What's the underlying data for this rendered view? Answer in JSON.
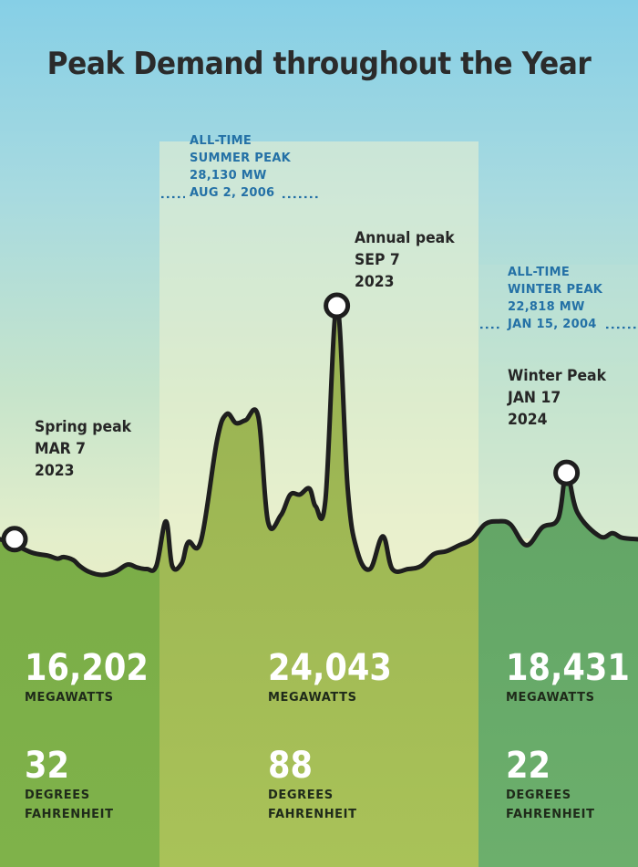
{
  "title": "Peak Demand throughout the Year",
  "colors": {
    "spring": "#7aaa4a",
    "summer": "#9fb655",
    "winter": "#5f9f62",
    "summer_band": "#ecf0cd",
    "winter_band": "#c4e3d4",
    "line": "#1e1e1e",
    "record_text": "#2471a6",
    "stat_text": "#ffffff"
  },
  "annotations": {
    "spring": {
      "label": "Spring peak",
      "date": "MAR 7",
      "year": "2023"
    },
    "annual": {
      "label": "Annual peak",
      "date": "SEP 7",
      "year": "2023"
    },
    "winter": {
      "label": "Winter Peak",
      "date": "JAN 17",
      "year": "2024"
    }
  },
  "records": {
    "summer": {
      "line1": "ALL-TIME",
      "line2": "SUMMER PEAK",
      "value": "28,130 MW",
      "date": "AUG 2, 2006"
    },
    "winter": {
      "line1": "ALL-TIME",
      "line2": "WINTER PEAK",
      "value": "22,818 MW",
      "date": "JAN 15, 2004"
    }
  },
  "stats": {
    "spring": {
      "megawatts": "16,202",
      "mw_label": "MEGAWATTS",
      "temp": "32",
      "temp_line1": "DEGREES",
      "temp_line2": "FAHRENHEIT"
    },
    "summer": {
      "megawatts": "24,043",
      "mw_label": "MEGAWATTS",
      "temp": "88",
      "temp_line1": "DEGREES",
      "temp_line2": "FAHRENHEIT"
    },
    "winter": {
      "megawatts": "18,431",
      "mw_label": "MEGAWATTS",
      "temp": "22",
      "temp_line1": "DEGREES",
      "temp_line2": "FAHRENHEIT"
    }
  },
  "chart_data": {
    "type": "area",
    "title": "Peak Demand throughout the Year",
    "x_range": [
      0,
      1
    ],
    "y_range": [
      14500,
      26500
    ],
    "season_bands": [
      {
        "name": "Spring",
        "x_start": 0,
        "x_end": 0.25
      },
      {
        "name": "Summer",
        "x_start": 0.25,
        "x_end": 0.75
      },
      {
        "name": "Winter",
        "x_start": 0.75,
        "x_end": 1.0
      }
    ],
    "series": [
      {
        "values": [
          [
            0.0,
            16202
          ],
          [
            0.02,
            16050
          ],
          [
            0.05,
            15750
          ],
          [
            0.075,
            15650
          ],
          [
            0.09,
            15550
          ],
          [
            0.1,
            15600
          ],
          [
            0.115,
            15500
          ],
          [
            0.125,
            15300
          ],
          [
            0.14,
            15100
          ],
          [
            0.16,
            15000
          ],
          [
            0.18,
            15100
          ],
          [
            0.2,
            15350
          ],
          [
            0.215,
            15250
          ],
          [
            0.23,
            15200
          ],
          [
            0.245,
            15300
          ],
          [
            0.26,
            16800
          ],
          [
            0.27,
            15300
          ],
          [
            0.285,
            15400
          ],
          [
            0.295,
            16100
          ],
          [
            0.315,
            16150
          ],
          [
            0.34,
            19500
          ],
          [
            0.355,
            20400
          ],
          [
            0.37,
            20100
          ],
          [
            0.385,
            20200
          ],
          [
            0.405,
            20300
          ],
          [
            0.42,
            16800
          ],
          [
            0.44,
            17000
          ],
          [
            0.455,
            17700
          ],
          [
            0.47,
            17700
          ],
          [
            0.485,
            17900
          ],
          [
            0.495,
            17300
          ],
          [
            0.51,
            17500
          ],
          [
            0.528,
            24043
          ],
          [
            0.545,
            17900
          ],
          [
            0.56,
            15800
          ],
          [
            0.58,
            15200
          ],
          [
            0.6,
            16300
          ],
          [
            0.615,
            15200
          ],
          [
            0.64,
            15200
          ],
          [
            0.66,
            15300
          ],
          [
            0.68,
            15700
          ],
          [
            0.7,
            15800
          ],
          [
            0.72,
            16000
          ],
          [
            0.74,
            16200
          ],
          [
            0.76,
            16700
          ],
          [
            0.78,
            16800
          ],
          [
            0.8,
            16700
          ],
          [
            0.825,
            16000
          ],
          [
            0.85,
            16600
          ],
          [
            0.875,
            16900
          ],
          [
            0.888,
            18431
          ],
          [
            0.905,
            17100
          ],
          [
            0.94,
            16300
          ],
          [
            0.96,
            16400
          ],
          [
            0.975,
            16250
          ],
          [
            1.0,
            16200
          ]
        ]
      }
    ],
    "highlighted_points": [
      {
        "label": "Spring peak",
        "x": 0.0,
        "y": 16202
      },
      {
        "label": "Annual peak",
        "x": 0.528,
        "y": 24043
      },
      {
        "label": "Winter Peak",
        "x": 0.888,
        "y": 18431
      }
    ]
  }
}
